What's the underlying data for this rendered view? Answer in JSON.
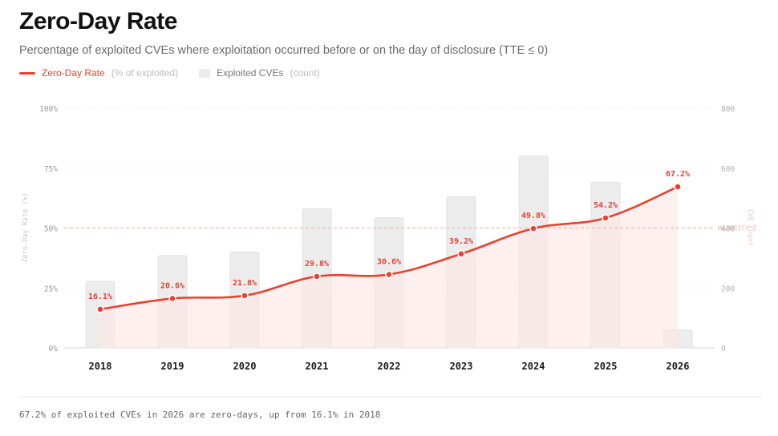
{
  "header": {
    "title": "Zero-Day Rate",
    "subtitle": "Percentage of exploited CVEs where exploitation occurred before or on the day of disclosure (TTE ≤ 0)"
  },
  "legend": {
    "line_name": "Zero-Day Rate",
    "line_unit": "(% of exploited)",
    "bar_name": "Exploited CVEs",
    "bar_unit": "(count)"
  },
  "chart_data": {
    "type": "bar+line",
    "categories": [
      "2018",
      "2019",
      "2020",
      "2021",
      "2022",
      "2023",
      "2024",
      "2025",
      "2026"
    ],
    "series": [
      {
        "name": "Zero-Day Rate",
        "unit": "% of exploited",
        "axis": "left",
        "type": "line",
        "values": [
          16.1,
          20.6,
          21.8,
          29.8,
          30.6,
          39.2,
          49.8,
          54.2,
          67.2
        ],
        "labels": [
          "16.1%",
          "20.6%",
          "21.8%",
          "29.8%",
          "30.6%",
          "39.2%",
          "49.8%",
          "54.2%",
          "67.2%"
        ]
      },
      {
        "name": "Exploited CVEs",
        "unit": "count",
        "axis": "right",
        "type": "bar",
        "values": [
          222,
          308,
          320,
          464,
          434,
          504,
          640,
          553,
          60
        ]
      }
    ],
    "y_left": {
      "label": "Zero-Day Rate (%)",
      "range": [
        0,
        100
      ],
      "ticks": [
        "0%",
        "25%",
        "50%",
        "75%",
        "100%"
      ],
      "tick_values": [
        0,
        25,
        50,
        75,
        100
      ]
    },
    "y_right": {
      "label": "CVE Count",
      "range": [
        0,
        800
      ],
      "ticks": [
        "0",
        "200",
        "400",
        "600",
        "800"
      ],
      "tick_values": [
        0,
        200,
        400,
        600,
        800
      ]
    },
    "reference_line": {
      "value": 50,
      "label": "MAJORITY Z"
    },
    "grid": true,
    "colors": {
      "line": "#e8412f",
      "bar": "#ececec",
      "area": "#fde8e5",
      "reference": "#f3b9ad"
    }
  },
  "footer": {
    "note": "67.2% of exploited CVEs in 2026 are zero-days, up from 16.1% in 2018"
  }
}
